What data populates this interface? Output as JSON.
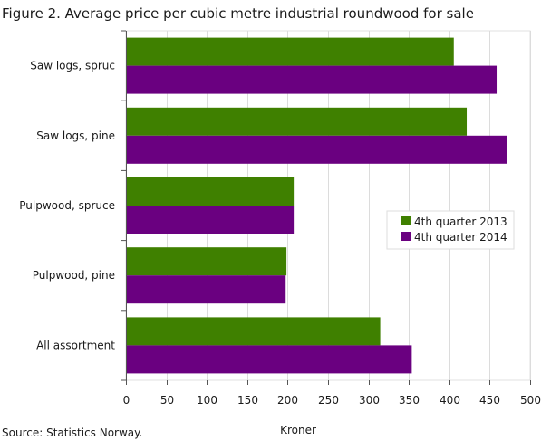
{
  "chart_data": {
    "type": "bar",
    "orientation": "horizontal",
    "title": "Figure 2. Average price per cubic metre industrial roundwood for sale",
    "categories": [
      "Saw logs, spruc",
      "Saw logs, pine",
      "Pulpwood, spruce",
      "Pulpwood, pine",
      "All assortment"
    ],
    "series": [
      {
        "name": "4th quarter 2013",
        "color": "#3f8000",
        "values": [
          405,
          421,
          207,
          198,
          314
        ]
      },
      {
        "name": "4th quarter 2014",
        "color": "#6a0080",
        "values": [
          458,
          471,
          207,
          197,
          353
        ]
      }
    ],
    "xlabel": "Kroner",
    "ylabel": "",
    "xlim": [
      0,
      500
    ],
    "xticks": [
      "0",
      "50",
      "100",
      "150",
      "200",
      "250",
      "300",
      "350",
      "400",
      "450",
      "500"
    ],
    "grid": true,
    "legend_position": "right-middle",
    "source": "Source: Statistics Norway."
  }
}
